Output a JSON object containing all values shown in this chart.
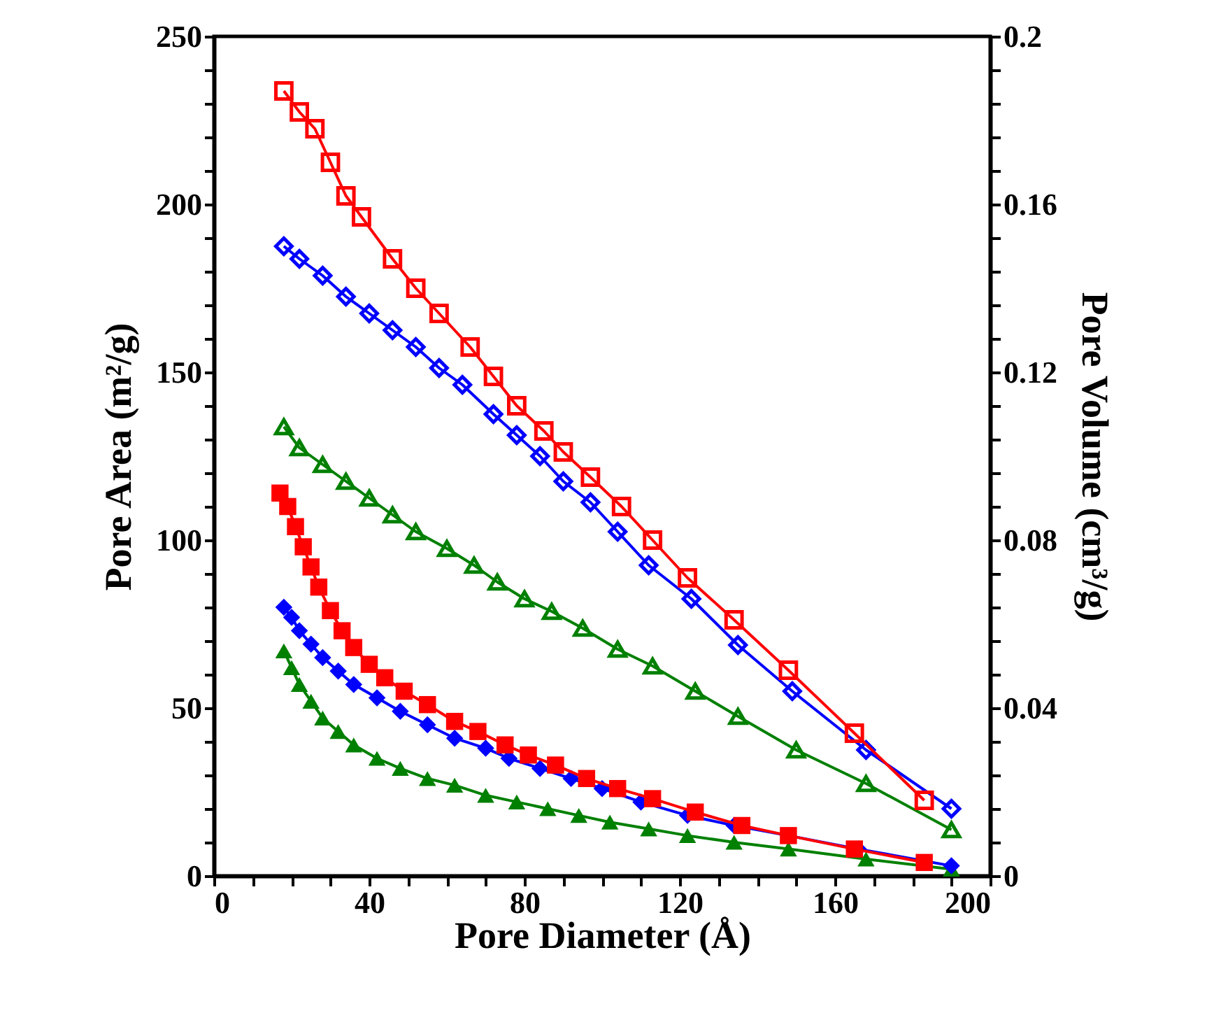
{
  "chart_data": {
    "type": "line",
    "xlabel": "Pore Diameter (Å)",
    "ylabel": "Pore Area (m²/g)",
    "y2label": "Pore Volume (cm³/g)",
    "xlim": [
      0,
      200
    ],
    "xticks": [
      0,
      {
        "value": 10,
        "label": null
      },
      {
        "value": 20,
        "label": null
      },
      {
        "value": 30,
        "label": null
      },
      40,
      {
        "value": 50,
        "label": null
      },
      {
        "value": 60,
        "label": null
      },
      {
        "value": 70,
        "label": null
      },
      80,
      {
        "value": 90,
        "label": null
      },
      {
        "value": 100,
        "label": null
      },
      {
        "value": 110,
        "label": null
      },
      120,
      {
        "value": 130,
        "label": null
      },
      {
        "value": 140,
        "label": null
      },
      {
        "value": 150,
        "label": null
      },
      160,
      {
        "value": 170,
        "label": null
      },
      {
        "value": 180,
        "label": null
      },
      {
        "value": 190,
        "label": null
      },
      200
    ],
    "ylim": [
      0,
      250
    ],
    "yticks": [
      0,
      {
        "value": 10,
        "label": null
      },
      {
        "value": 20,
        "label": null
      },
      {
        "value": 30,
        "label": null
      },
      {
        "value": 40,
        "label": null
      },
      50,
      {
        "value": 60,
        "label": null
      },
      {
        "value": 70,
        "label": null
      },
      {
        "value": 80,
        "label": null
      },
      {
        "value": 90,
        "label": null
      },
      100,
      {
        "value": 110,
        "label": null
      },
      {
        "value": 120,
        "label": null
      },
      {
        "value": 130,
        "label": null
      },
      {
        "value": 140,
        "label": null
      },
      150,
      {
        "value": 160,
        "label": null
      },
      {
        "value": 170,
        "label": null
      },
      {
        "value": 180,
        "label": null
      },
      {
        "value": 190,
        "label": null
      },
      200,
      {
        "value": 210,
        "label": null
      },
      {
        "value": 220,
        "label": null
      },
      {
        "value": 230,
        "label": null
      },
      {
        "value": 240,
        "label": null
      },
      250
    ],
    "y2lim": [
      0,
      0.2
    ],
    "y2ticks": [
      0,
      {
        "value": 0.008,
        "label": null
      },
      {
        "value": 0.016,
        "label": null
      },
      {
        "value": 0.024,
        "label": null
      },
      {
        "value": 0.032,
        "label": null
      },
      0.04,
      {
        "value": 0.048,
        "label": null
      },
      {
        "value": 0.056,
        "label": null
      },
      {
        "value": 0.064,
        "label": null
      },
      {
        "value": 0.072,
        "label": null
      },
      0.08,
      {
        "value": 0.088,
        "label": null
      },
      {
        "value": 0.096,
        "label": null
      },
      {
        "value": 0.104,
        "label": null
      },
      {
        "value": 0.112,
        "label": null
      },
      0.12,
      {
        "value": 0.128,
        "label": null
      },
      {
        "value": 0.136,
        "label": null
      },
      {
        "value": 0.144,
        "label": null
      },
      {
        "value": 0.152,
        "label": null
      },
      0.16,
      {
        "value": 0.168,
        "label": null
      },
      {
        "value": 0.176,
        "label": null
      },
      {
        "value": 0.184,
        "label": null
      },
      {
        "value": 0.192,
        "label": null
      },
      0.2
    ],
    "grid": false,
    "line_style": "solid",
    "series": [
      {
        "color": "#ff0000",
        "marker": "square",
        "axis": "y",
        "x": [
          17,
          19,
          21,
          23,
          25,
          27,
          30,
          33,
          36,
          40,
          44,
          49,
          55,
          62,
          68,
          75,
          81,
          88,
          96,
          104,
          113,
          124,
          136,
          148,
          165,
          183
        ],
        "values": [
          114,
          110,
          104,
          98,
          92,
          86,
          79,
          73,
          68,
          63,
          59,
          55,
          51,
          46,
          43,
          39,
          36,
          33,
          29,
          26,
          23,
          19,
          15,
          12,
          8,
          4
        ]
      },
      {
        "color": "#0000ff",
        "marker": "diamond",
        "axis": "y",
        "x": [
          18,
          20,
          22,
          25,
          28,
          32,
          36,
          42,
          48,
          55,
          62,
          70,
          76,
          84,
          92,
          100,
          110,
          122,
          134,
          148,
          166,
          190
        ],
        "values": [
          80,
          77,
          73,
          69,
          65,
          61,
          57,
          53,
          49,
          45,
          41,
          38,
          35,
          32,
          29,
          26,
          22,
          18,
          15,
          12,
          8,
          3
        ]
      },
      {
        "color": "#008000",
        "marker": "triangle",
        "axis": "y",
        "x": [
          18,
          20,
          22,
          25,
          28,
          32,
          36,
          42,
          48,
          55,
          62,
          70,
          78,
          86,
          94,
          102,
          112,
          122,
          134,
          148,
          168,
          190
        ],
        "values": [
          67,
          62,
          57,
          52,
          47,
          43,
          39,
          35,
          32,
          29,
          27,
          24,
          22,
          20,
          18,
          16,
          14,
          12,
          10,
          8,
          5,
          2
        ]
      },
      {
        "color": "#ff0000",
        "marker": "square",
        "axis": "y2",
        "x": [
          18,
          22,
          26,
          30,
          34,
          38,
          46,
          52,
          58,
          66,
          72,
          78,
          85,
          90,
          97,
          105,
          113,
          122,
          134,
          148,
          165,
          183
        ],
        "values": [
          0.187,
          0.182,
          0.178,
          0.17,
          0.162,
          0.157,
          0.147,
          0.14,
          0.134,
          0.126,
          0.119,
          0.112,
          0.106,
          0.101,
          0.095,
          0.088,
          0.08,
          0.071,
          0.061,
          0.049,
          0.034,
          0.018
        ]
      },
      {
        "color": "#0000ff",
        "marker": "diamond",
        "axis": "y2",
        "x": [
          18,
          22,
          28,
          34,
          40,
          46,
          52,
          58,
          64,
          72,
          78,
          84,
          90,
          97,
          104,
          112,
          123,
          135,
          149,
          168,
          190
        ],
        "values": [
          0.15,
          0.147,
          0.143,
          0.138,
          0.134,
          0.13,
          0.126,
          0.121,
          0.117,
          0.11,
          0.105,
          0.1,
          0.094,
          0.089,
          0.082,
          0.074,
          0.066,
          0.055,
          0.044,
          0.03,
          0.016
        ]
      },
      {
        "color": "#008000",
        "marker": "triangle",
        "axis": "y2",
        "x": [
          18,
          22,
          28,
          34,
          40,
          46,
          52,
          60,
          67,
          73,
          80,
          87,
          95,
          104,
          113,
          124,
          135,
          150,
          168,
          190
        ],
        "values": [
          0.107,
          0.102,
          0.098,
          0.094,
          0.09,
          0.086,
          0.082,
          0.078,
          0.074,
          0.07,
          0.066,
          0.063,
          0.059,
          0.054,
          0.05,
          0.044,
          0.038,
          0.03,
          0.022,
          0.011
        ]
      }
    ]
  }
}
